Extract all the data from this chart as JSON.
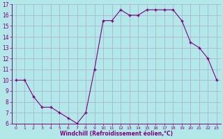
{
  "x": [
    0,
    1,
    2,
    3,
    4,
    5,
    6,
    7,
    8,
    9,
    10,
    11,
    12,
    13,
    14,
    15,
    16,
    17,
    18,
    19,
    20,
    21,
    22,
    23
  ],
  "y": [
    10,
    10,
    8.5,
    7.5,
    7.5,
    7,
    6.5,
    6,
    7,
    11,
    15.5,
    15.5,
    16.5,
    16,
    16,
    16.5,
    16.5,
    16.5,
    16.5,
    15.5,
    13.5,
    13,
    12,
    10
  ],
  "line_color": "#800080",
  "marker": "+",
  "marker_color": "#800080",
  "bg_color": "#b3e8e8",
  "grid_color": "#aaaacc",
  "xlabel": "Windchill (Refroidissement éolien,°C)",
  "xlabel_color": "#800080",
  "tick_color": "#800080",
  "ylim": [
    6,
    17
  ],
  "xlim": [
    -0.5,
    23.5
  ],
  "yticks": [
    6,
    7,
    8,
    9,
    10,
    11,
    12,
    13,
    14,
    15,
    16,
    17
  ],
  "xticks": [
    0,
    1,
    2,
    3,
    4,
    5,
    6,
    7,
    8,
    9,
    10,
    11,
    12,
    13,
    14,
    15,
    16,
    17,
    18,
    19,
    20,
    21,
    22,
    23
  ]
}
